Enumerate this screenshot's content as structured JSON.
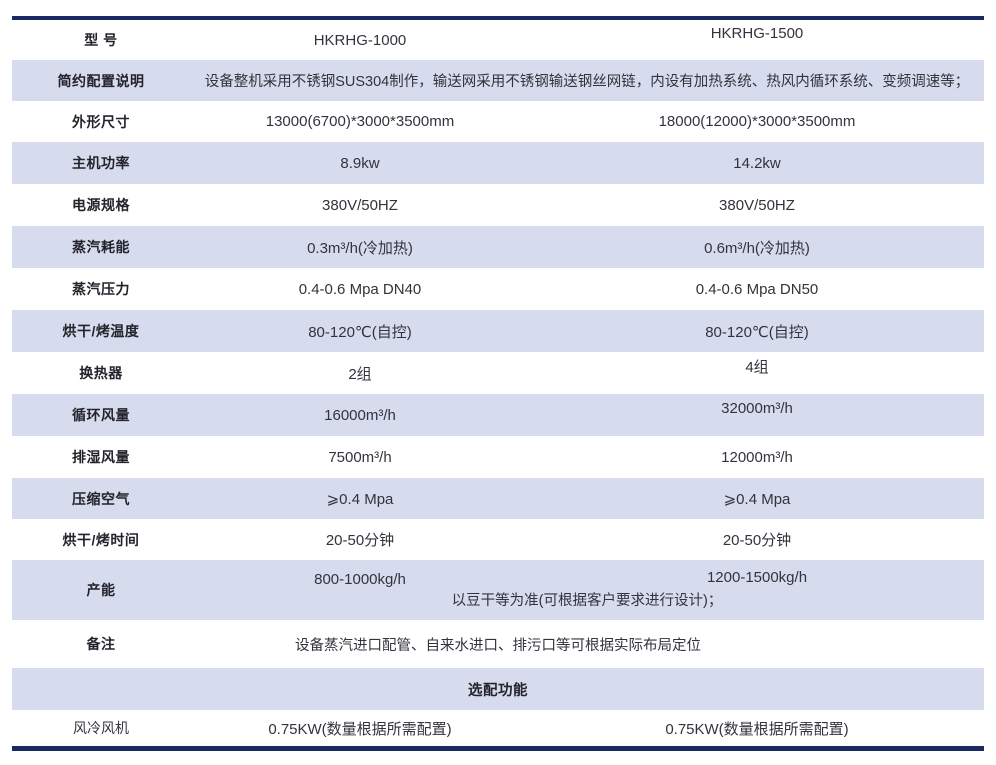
{
  "colors": {
    "accent_navy": "#1a2962",
    "row_alt_bg": "#d7dbee",
    "label_text": "#23232b",
    "value_text": "#33333d"
  },
  "table": {
    "rows": [
      {
        "label": "型 号",
        "v1": "HKRHG-1000",
        "v2": "HKRHG-1500"
      },
      {
        "label": "简约配置说明",
        "merged": "设备整机采用不锈钢SUS304制作，输送网采用不锈钢输送钢丝网链，内设有加热系统、热风内循环系统、变频调速等；"
      },
      {
        "label": "外形尺寸",
        "v1": "13000(6700)*3000*3500mm",
        "v2": "18000(12000)*3000*3500mm"
      },
      {
        "label": "主机功率",
        "v1": "8.9kw",
        "v2": "14.2kw"
      },
      {
        "label": "电源规格",
        "v1": "380V/50HZ",
        "v2": "380V/50HZ"
      },
      {
        "label": "蒸汽耗能",
        "v1": "0.3m³/h(冷加热)",
        "v2": "0.6m³/h(冷加热)"
      },
      {
        "label": "蒸汽压力",
        "v1": "0.4-0.6 Mpa DN40",
        "v2": "0.4-0.6 Mpa DN50"
      },
      {
        "label": "烘干/烤温度",
        "v1": "80-120℃(自控)",
        "v2": "80-120℃(自控)"
      },
      {
        "label": "换热器",
        "v1": "2组",
        "v2": "4组"
      },
      {
        "label": "循环风量",
        "v1": "16000m³/h",
        "v2": "32000m³/h"
      },
      {
        "label": "排湿风量",
        "v1": "7500m³/h",
        "v2": "12000m³/h"
      },
      {
        "label": "压缩空气",
        "v1": "⩾0.4 Mpa",
        "v2": "⩾0.4 Mpa"
      },
      {
        "label": "烘干/烤时间",
        "v1": "20-50分钟",
        "v2": "20-50分钟"
      },
      {
        "label": "产能",
        "v1": "800-1000kg/h",
        "v2": "1200-1500kg/h",
        "note": "以豆干等为准(可根据客户要求进行设计)；"
      },
      {
        "label": "备注",
        "merged": "设备蒸汽进口配管、自来水进口、排污口等可根据实际布局定位"
      },
      {
        "title": "选配功能"
      },
      {
        "label": "风冷风机",
        "v1": "0.75KW(数量根据所需配置)",
        "v2": "0.75KW(数量根据所需配置)"
      }
    ]
  }
}
